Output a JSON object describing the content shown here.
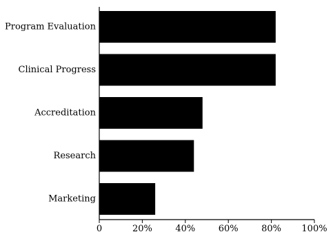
{
  "chart_data": {
    "type": "bar",
    "orientation": "horizontal",
    "title": "",
    "xlabel": "",
    "ylabel": "",
    "categories": [
      "Program Evaluation",
      "Clinical Progress",
      "Accreditation",
      "Research",
      "Marketing"
    ],
    "series": [
      {
        "values": [
          82,
          82,
          48,
          44,
          26
        ]
      }
    ],
    "xlim": [
      0,
      100
    ],
    "xticks": [
      0,
      20,
      40,
      60,
      80,
      100
    ],
    "xtick_labels": [
      "0",
      "20%",
      "40%",
      "60%",
      "80%",
      "100%"
    ],
    "bar_color": "#000000",
    "grid": false,
    "legend": "none"
  }
}
